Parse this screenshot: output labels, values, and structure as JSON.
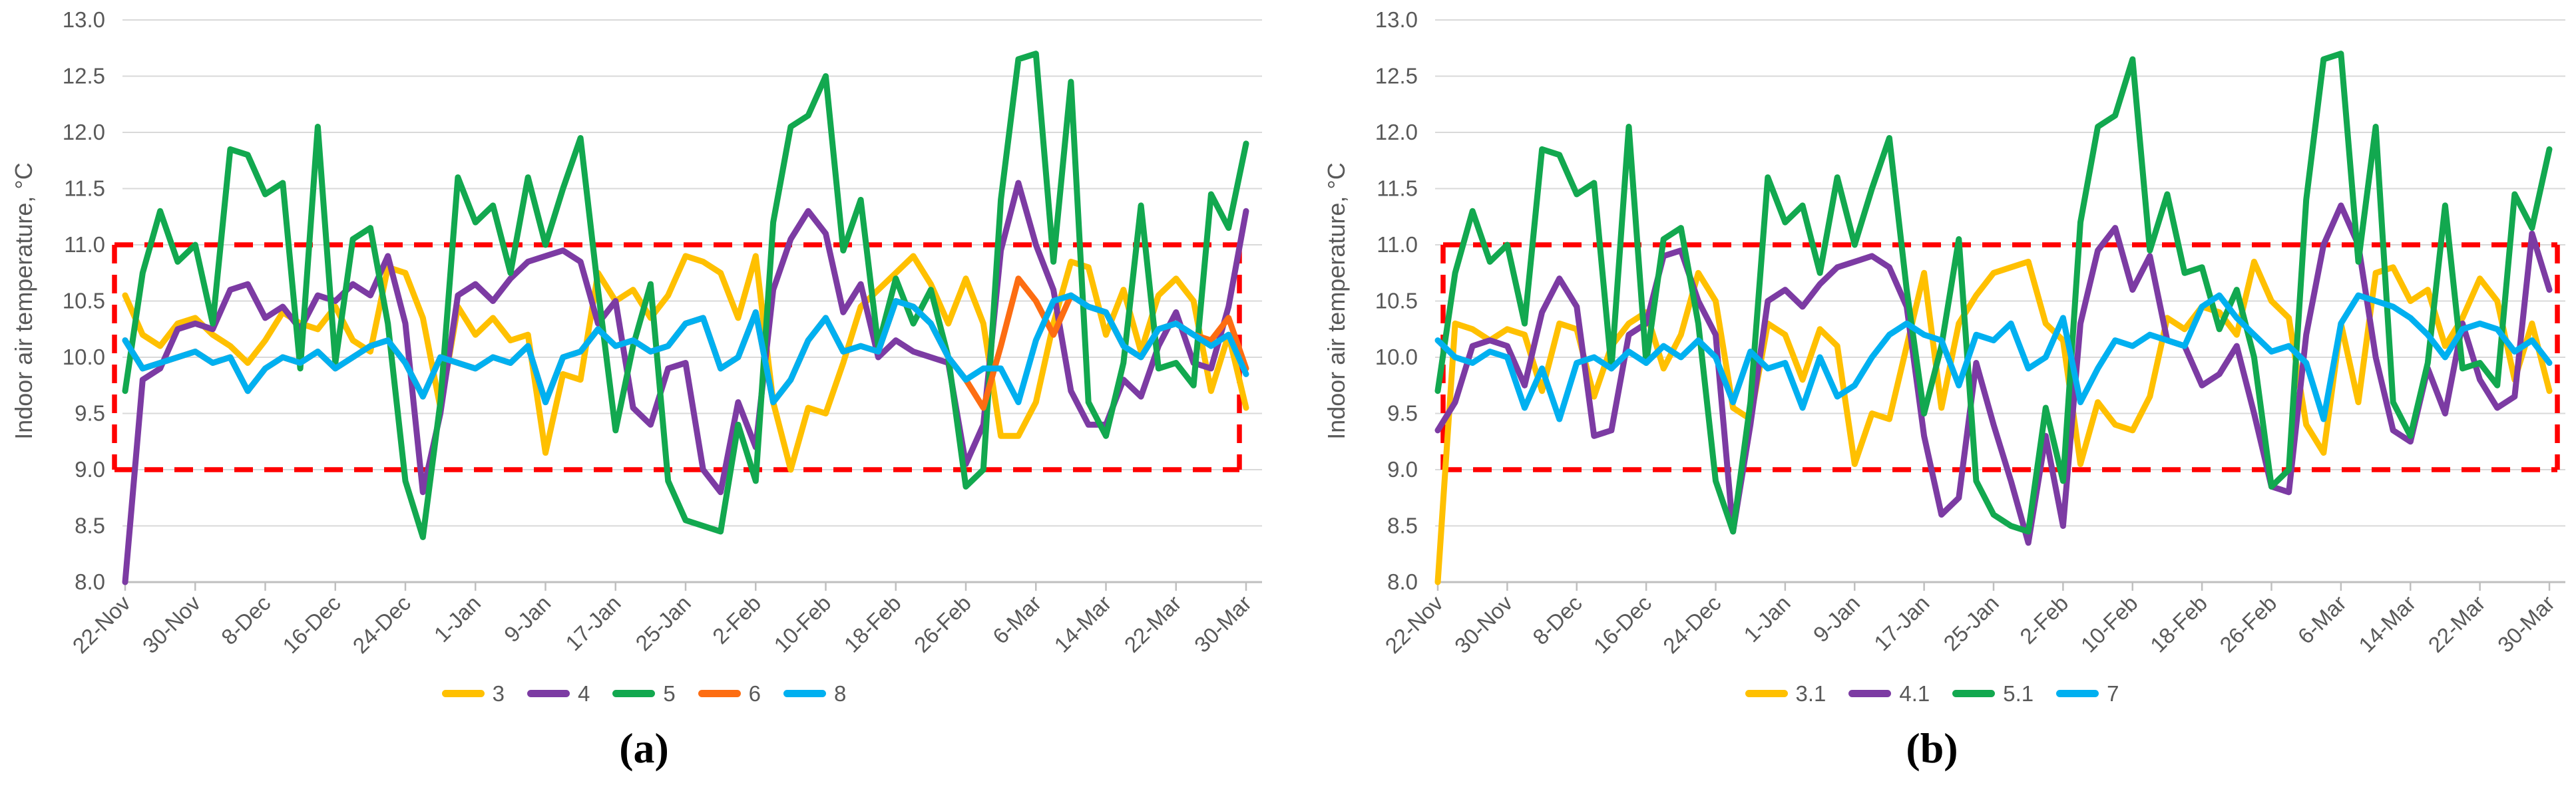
{
  "figure": {
    "ylabel": "Indoor air temperature, °C",
    "y_tick_labels": [
      "13.0",
      "12.5",
      "12.0",
      "11.5",
      "11.0",
      "10.5",
      "10.0",
      "9.5",
      "9.0",
      "8.5",
      "8.0"
    ],
    "x_tick_labels": [
      "22-Nov",
      "30-Nov",
      "8-Dec",
      "16-Dec",
      "24-Dec",
      "1-Jan",
      "9-Jan",
      "17-Jan",
      "25-Jan",
      "2-Feb",
      "10-Feb",
      "18-Feb",
      "26-Feb",
      "6-Mar",
      "14-Mar",
      "22-Mar",
      "30-Mar"
    ],
    "highlight_band": {
      "ymin": 9.0,
      "ymax": 11.0,
      "color": "#FF0000",
      "style": "dashed-rectangle"
    }
  },
  "colors": {
    "yellow": "#FFC000",
    "purple": "#7C3BA3",
    "green": "#12A84F",
    "orange": "#FD6D12",
    "blue": "#00B0F0",
    "red_box": "#FF0000",
    "gridline": "#D9D9D9",
    "axis": "#BFBFBF",
    "tick_text": "#595959"
  },
  "chart_data": [
    {
      "type": "line",
      "panel": "a",
      "caption": "(a)",
      "ylabel": "Indoor air temperature, °C",
      "ylim": [
        8.0,
        13.0
      ],
      "x_tick_labels": [
        "22-Nov",
        "30-Nov",
        "8-Dec",
        "16-Dec",
        "24-Dec",
        "1-Jan",
        "9-Jan",
        "17-Jan",
        "25-Jan",
        "2-Feb",
        "10-Feb",
        "18-Feb",
        "26-Feb",
        "6-Mar",
        "14-Mar",
        "22-Mar",
        "30-Mar"
      ],
      "x_step_days": 2,
      "x_total_days": 128,
      "grid": true,
      "legend_position": "bottom",
      "highlight_box": {
        "ymin": 9.0,
        "ymax": 11.0
      },
      "series": [
        {
          "name": "3",
          "color": "#FFC000",
          "values": [
            10.55,
            10.2,
            10.1,
            10.3,
            10.35,
            10.2,
            10.1,
            9.95,
            10.15,
            10.4,
            10.3,
            10.25,
            10.45,
            10.15,
            10.05,
            10.8,
            10.75,
            10.35,
            9.55,
            10.45,
            10.2,
            10.35,
            10.15,
            10.2,
            9.15,
            9.85,
            9.8,
            10.75,
            10.5,
            10.6,
            10.35,
            10.55,
            10.9,
            10.85,
            10.75,
            10.35,
            10.9,
            9.6,
            9.0,
            9.55,
            9.5,
            9.95,
            10.45,
            10.6,
            10.75,
            10.9,
            10.65,
            10.3,
            10.7,
            10.3,
            9.3,
            9.3,
            9.6,
            10.3,
            10.85,
            10.8,
            10.2,
            10.6,
            10.05,
            10.55,
            10.7,
            10.5,
            9.7,
            10.2,
            9.55
          ]
        },
        {
          "name": "4",
          "color": "#7C3BA3",
          "values": [
            8.0,
            9.8,
            9.9,
            10.25,
            10.3,
            10.25,
            10.6,
            10.65,
            10.35,
            10.45,
            10.25,
            10.55,
            10.5,
            10.65,
            10.55,
            10.9,
            10.3,
            8.8,
            9.5,
            10.55,
            10.65,
            10.5,
            10.7,
            10.85,
            10.9,
            10.95,
            10.85,
            10.3,
            10.5,
            9.55,
            9.4,
            9.9,
            9.95,
            9.0,
            8.8,
            9.6,
            9.2,
            10.6,
            11.05,
            11.3,
            11.1,
            10.4,
            10.65,
            10.0,
            10.15,
            10.05,
            10.0,
            9.95,
            9.05,
            9.4,
            10.95,
            11.55,
            11.0,
            10.6,
            9.7,
            9.4,
            9.4,
            9.8,
            9.65,
            10.1,
            10.4,
            9.95,
            9.9,
            10.45,
            11.3
          ]
        },
        {
          "name": "5",
          "color": "#12A84F",
          "values": [
            9.7,
            10.75,
            11.3,
            10.85,
            11.0,
            10.3,
            11.85,
            11.8,
            11.45,
            11.55,
            9.9,
            12.05,
            9.95,
            11.05,
            11.15,
            10.3,
            8.9,
            8.4,
            9.6,
            11.6,
            11.2,
            11.35,
            10.75,
            11.6,
            11.0,
            11.5,
            11.95,
            10.6,
            9.35,
            10.1,
            10.65,
            8.9,
            8.55,
            8.5,
            8.45,
            9.4,
            8.9,
            11.2,
            12.05,
            12.15,
            12.5,
            10.95,
            11.4,
            10.1,
            10.7,
            10.3,
            10.6,
            10.0,
            8.85,
            9.0,
            11.4,
            12.65,
            12.7,
            10.85,
            12.45,
            9.6,
            9.3,
            9.95,
            11.35,
            9.9,
            9.95,
            9.75,
            11.45,
            11.15,
            11.9
          ]
        },
        {
          "name": "6",
          "color": "#FD6D12",
          "values": [
            10.15,
            9.9,
            9.95,
            10.0,
            10.05,
            9.95,
            10.0,
            9.7,
            9.9,
            10.0,
            9.95,
            10.05,
            9.9,
            10.0,
            10.1,
            10.15,
            9.95,
            9.65,
            10.0,
            9.95,
            9.9,
            10.0,
            9.95,
            10.1,
            9.6,
            10.0,
            10.05,
            10.25,
            10.1,
            10.15,
            10.05,
            10.1,
            10.3,
            10.35,
            9.9,
            10.0,
            10.4,
            9.6,
            9.8,
            10.15,
            10.35,
            10.05,
            10.1,
            10.05,
            10.5,
            10.45,
            10.3,
            10.0,
            9.8,
            9.55,
            10.1,
            10.7,
            10.5,
            10.2,
            10.55,
            10.45,
            10.4,
            10.1,
            10.0,
            10.25,
            10.3,
            10.2,
            10.15,
            10.35,
            9.9
          ]
        },
        {
          "name": "8",
          "color": "#00B0F0",
          "values": [
            10.15,
            9.9,
            9.95,
            10.0,
            10.05,
            9.95,
            10.0,
            9.7,
            9.9,
            10.0,
            9.95,
            10.05,
            9.9,
            10.0,
            10.1,
            10.15,
            9.95,
            9.65,
            10.0,
            9.95,
            9.9,
            10.0,
            9.95,
            10.1,
            9.6,
            10.0,
            10.05,
            10.25,
            10.1,
            10.15,
            10.05,
            10.1,
            10.3,
            10.35,
            9.9,
            10.0,
            10.4,
            9.6,
            9.8,
            10.15,
            10.35,
            10.05,
            10.1,
            10.05,
            10.5,
            10.45,
            10.3,
            10.0,
            9.8,
            9.9,
            9.9,
            9.6,
            10.15,
            10.5,
            10.55,
            10.45,
            10.4,
            10.1,
            10.0,
            10.25,
            10.3,
            10.2,
            10.1,
            10.2,
            9.85
          ]
        }
      ]
    },
    {
      "type": "line",
      "panel": "b",
      "caption": "(b)",
      "ylabel": "Indoor air temperature, °C",
      "ylim": [
        8.0,
        13.0
      ],
      "x_tick_labels": [
        "22-Nov",
        "30-Nov",
        "8-Dec",
        "16-Dec",
        "24-Dec",
        "1-Jan",
        "9-Jan",
        "17-Jan",
        "25-Jan",
        "2-Feb",
        "10-Feb",
        "18-Feb",
        "26-Feb",
        "6-Mar",
        "14-Mar",
        "22-Mar",
        "30-Mar"
      ],
      "x_step_days": 2,
      "x_total_days": 128,
      "grid": true,
      "legend_position": "bottom",
      "highlight_box": {
        "ymin": 9.0,
        "ymax": 11.0
      },
      "series": [
        {
          "name": "3.1",
          "color": "#FFC000",
          "values": [
            8.0,
            10.3,
            10.25,
            10.15,
            10.25,
            10.2,
            9.7,
            10.3,
            10.25,
            9.65,
            10.1,
            10.3,
            10.4,
            9.9,
            10.2,
            10.75,
            10.5,
            9.55,
            9.45,
            10.3,
            10.2,
            9.8,
            10.25,
            10.1,
            9.05,
            9.5,
            9.45,
            10.1,
            10.75,
            9.55,
            10.3,
            10.55,
            10.75,
            10.8,
            10.85,
            10.3,
            10.15,
            9.05,
            9.6,
            9.4,
            9.35,
            9.65,
            10.35,
            10.25,
            10.45,
            10.4,
            10.2,
            10.85,
            10.5,
            10.35,
            9.4,
            9.15,
            10.3,
            9.6,
            10.75,
            10.8,
            10.5,
            10.6,
            10.1,
            10.35,
            10.7,
            10.5,
            9.8,
            10.3,
            9.7
          ]
        },
        {
          "name": "4.1",
          "color": "#7C3BA3",
          "values": [
            9.35,
            9.6,
            10.1,
            10.15,
            10.1,
            9.75,
            10.4,
            10.7,
            10.45,
            9.3,
            9.35,
            10.2,
            10.3,
            10.9,
            10.95,
            10.5,
            10.2,
            8.45,
            9.4,
            10.5,
            10.6,
            10.45,
            10.65,
            10.8,
            10.85,
            10.9,
            10.8,
            10.45,
            9.3,
            8.6,
            8.75,
            9.95,
            9.4,
            8.9,
            8.35,
            9.3,
            8.5,
            10.3,
            10.95,
            11.15,
            10.6,
            10.9,
            10.15,
            10.1,
            9.75,
            9.85,
            10.1,
            9.5,
            8.85,
            8.8,
            10.2,
            11.0,
            11.35,
            11.0,
            10.0,
            9.35,
            9.25,
            9.9,
            9.5,
            10.3,
            9.8,
            9.55,
            9.65,
            11.1,
            10.6
          ]
        },
        {
          "name": "5.1",
          "color": "#12A84F",
          "values": [
            9.7,
            10.75,
            11.3,
            10.85,
            11.0,
            10.3,
            11.85,
            11.8,
            11.45,
            11.55,
            9.9,
            12.05,
            9.95,
            11.05,
            11.15,
            10.3,
            8.9,
            8.45,
            9.6,
            11.6,
            11.2,
            11.35,
            10.75,
            11.6,
            11.0,
            11.5,
            11.95,
            10.6,
            9.5,
            10.1,
            11.05,
            8.9,
            8.6,
            8.5,
            8.45,
            9.55,
            8.9,
            11.2,
            12.05,
            12.15,
            12.65,
            10.95,
            11.45,
            10.75,
            10.8,
            10.25,
            10.6,
            10.0,
            8.85,
            9.0,
            11.4,
            12.65,
            12.7,
            10.85,
            12.05,
            9.6,
            9.3,
            9.95,
            11.35,
            9.9,
            9.95,
            9.75,
            11.45,
            11.15,
            11.85
          ]
        },
        {
          "name": "7",
          "color": "#00B0F0",
          "values": [
            10.15,
            10.0,
            9.95,
            10.05,
            10.0,
            9.55,
            9.9,
            9.45,
            9.95,
            10.0,
            9.9,
            10.05,
            9.95,
            10.1,
            10.0,
            10.15,
            10.0,
            9.6,
            10.05,
            9.9,
            9.95,
            9.55,
            10.0,
            9.65,
            9.75,
            10.0,
            10.2,
            10.3,
            10.2,
            10.15,
            9.75,
            10.2,
            10.15,
            10.3,
            9.9,
            10.0,
            10.35,
            9.6,
            9.9,
            10.15,
            10.1,
            10.2,
            10.15,
            10.1,
            10.45,
            10.55,
            10.35,
            10.2,
            10.05,
            10.1,
            9.95,
            9.45,
            10.3,
            10.55,
            10.5,
            10.45,
            10.35,
            10.2,
            10.0,
            10.25,
            10.3,
            10.25,
            10.05,
            10.15,
            9.95
          ]
        }
      ]
    }
  ]
}
